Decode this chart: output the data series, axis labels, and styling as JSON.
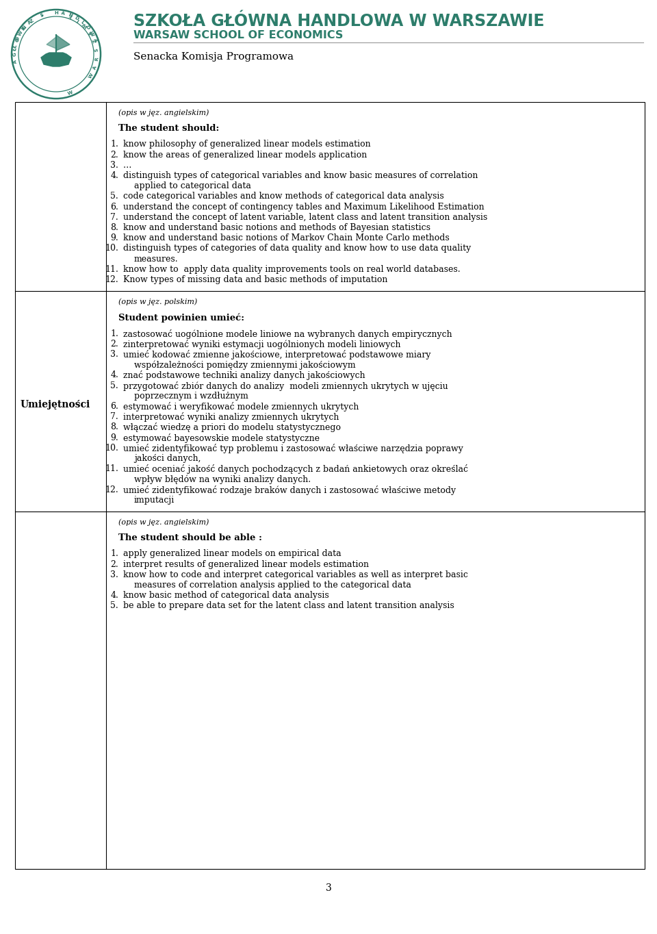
{
  "bg_color": "#ffffff",
  "teal_color": "#2d7d6b",
  "header_line1": "SZKOŁA GŁÓWNA HANDLOWA W WARSZAWIE",
  "header_line2": "WARSAW SCHOOL OF ECONOMICS",
  "subheader": "Senacka Komisja Programowa",
  "page_number": "3",
  "sections": [
    {
      "left_label": "",
      "left_bold": false,
      "items": [
        {
          "type": "italic_small",
          "text": "(opis w jęz. angielskim)"
        },
        {
          "type": "blank"
        },
        {
          "type": "bold_header",
          "text": "The student should:"
        },
        {
          "type": "blank"
        },
        {
          "type": "numbered",
          "num": "1.",
          "text": "know philosophy of generalized linear models estimation"
        },
        {
          "type": "numbered",
          "num": "2.",
          "text": "know the areas of generalized linear models application"
        },
        {
          "type": "numbered",
          "num": "3.",
          "text": "…"
        },
        {
          "type": "numbered_wrap",
          "num": "4.",
          "text": "distinguish types of categorical variables and know basic measures of correlation",
          "text2": "applied to categorical data"
        },
        {
          "type": "numbered",
          "num": "5.",
          "text": "code categorical variables and know methods of categorical data analysis"
        },
        {
          "type": "numbered",
          "num": "6.",
          "text": "understand the concept of contingency tables and Maximum Likelihood Estimation"
        },
        {
          "type": "numbered",
          "num": "7.",
          "text": "understand the concept of latent variable, latent class and latent transition analysis"
        },
        {
          "type": "numbered",
          "num": "8.",
          "text": "know and understand basic notions and methods of Bayesian statistics"
        },
        {
          "type": "numbered",
          "num": "9.",
          "text": "know and understand basic notions of Markov Chain Monte Carlo methods"
        },
        {
          "type": "numbered_wrap",
          "num": "10.",
          "text": "distinguish types of categories of data quality and know how to use data quality",
          "text2": "measures."
        },
        {
          "type": "numbered",
          "num": "11.",
          "text": "know how to  apply data quality improvements tools on real world databases."
        },
        {
          "type": "numbered",
          "num": "12.",
          "text": "Know types of missing data and basic methods of imputation"
        }
      ]
    },
    {
      "left_label": "Umiejętności",
      "left_bold": true,
      "items": [
        {
          "type": "italic_small",
          "text": "(opis w jęz. polskim)"
        },
        {
          "type": "blank"
        },
        {
          "type": "bold_header",
          "text": "Student powinien umieć:"
        },
        {
          "type": "blank"
        },
        {
          "type": "numbered",
          "num": "1.",
          "text": "zastosować uogólnione modele liniowe na wybranych danych empirycznych"
        },
        {
          "type": "numbered",
          "num": "2.",
          "text": "zinterpretować wyniki estymacji uogólnionych modeli liniowych"
        },
        {
          "type": "numbered_wrap",
          "num": "3.",
          "text": "umieć kodować zmienne jakościowe, interpretować podstawowe miary",
          "text2": "współzależności pomiędzy zmiennymi jakościowym"
        },
        {
          "type": "numbered",
          "num": "4.",
          "text": "znać podstawowe techniki analizy danych jakościowych"
        },
        {
          "type": "numbered_wrap",
          "num": "5.",
          "text": "przygotować zbiór danych do analizy  modeli zmiennych ukrytych w ujęciu",
          "text2": "poprzecznym i wzdłużnym"
        },
        {
          "type": "numbered",
          "num": "6.",
          "text": "estymować i weryfikować modele zmiennych ukrytych"
        },
        {
          "type": "numbered",
          "num": "7.",
          "text": "interpretować wyniki analizy zmiennych ukrytych"
        },
        {
          "type": "numbered",
          "num": "8.",
          "text": "włączać wiedzę a priori do modelu statystycznego"
        },
        {
          "type": "numbered",
          "num": "9.",
          "text": "estymować bayesowskie modele statystyczne"
        },
        {
          "type": "numbered_wrap",
          "num": "10.",
          "text": "umieć zidentyfikować typ problemu i zastosować właściwe narzędzia poprawy",
          "text2": "jakości danych,"
        },
        {
          "type": "numbered_wrap",
          "num": "11.",
          "text": "umieć oceniać jakość danych pochodzących z badań ankietowych oraz określać",
          "text2": "wpływ błędów na wyniki analizy danych."
        },
        {
          "type": "numbered_wrap",
          "num": "12.",
          "text": "umieć zidentyfikować rodzaje braków danych i zastosować właściwe metody",
          "text2": "imputacji"
        }
      ]
    },
    {
      "left_label": "",
      "left_bold": false,
      "items": [
        {
          "type": "italic_small",
          "text": "(opis w jęz. angielskim)"
        },
        {
          "type": "blank"
        },
        {
          "type": "bold_header",
          "text": "The student should be able :"
        },
        {
          "type": "blank"
        },
        {
          "type": "numbered",
          "num": "1.",
          "text": "apply generalized linear models on empirical data"
        },
        {
          "type": "numbered",
          "num": "2.",
          "text": "interpret results of generalized linear models estimation"
        },
        {
          "type": "numbered_wrap",
          "num": "3.",
          "text": "know how to code and interpret categorical variables as well as interpret basic",
          "text2": "measures of correlation analysis applied to the categorical data"
        },
        {
          "type": "numbered",
          "num": "4.",
          "text": "know basic method of categorical data analysis"
        },
        {
          "type": "numbered",
          "num": "5.",
          "text": "be able to prepare data set for the latent class and latent transition analysis"
        }
      ]
    }
  ]
}
